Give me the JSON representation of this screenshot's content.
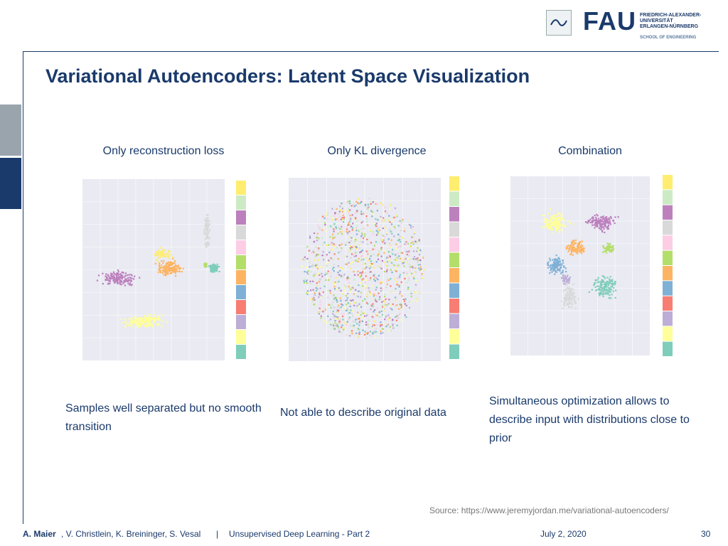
{
  "header": {
    "logo_text": "FAU",
    "university_lines": [
      "FRIEDRICH-ALEXANDER-",
      "UNIVERSITÄT",
      "ERLANGEN-NÜRNBERG"
    ],
    "school": "SCHOOL OF ENGINEERING"
  },
  "slide": {
    "title": "Variational Autoencoders: Latent Space Visualization",
    "panels": [
      {
        "caption": "Only reconstruction loss",
        "description": "Samples well separated but no smooth transition"
      },
      {
        "caption": "Only KL divergence",
        "description": "Not able to describe original data"
      },
      {
        "caption": "Combination",
        "description": "Simultaneous optimization allows to describe input with distributions close to prior"
      }
    ],
    "source": "Source: https://www.jeremyjordan.me/variational-autoencoders/"
  },
  "footer": {
    "author_bold": "A. Maier",
    "authors_rest": ", V. Christlein, K. Breininger, S. Vesal",
    "separator": "|",
    "lecture": "Unsupervised Deep Learning - Part 2",
    "date": "July 2, 2020",
    "page": "30"
  },
  "colors": {
    "palette": [
      "#7fcdbb",
      "#ffff99",
      "#bcaed6",
      "#f87d73",
      "#7fb0d6",
      "#fdb462",
      "#b3de69",
      "#fccde5",
      "#d9d9d9",
      "#bc80bd",
      "#ccebc5",
      "#ffed6f"
    ]
  }
}
